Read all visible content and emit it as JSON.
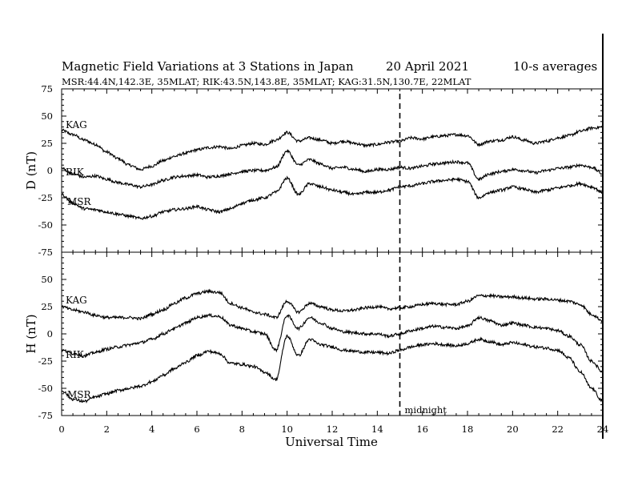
{
  "chart_data": {
    "type": "line",
    "title": {
      "main": "Magnetic Field Variations at 3 Stations in Japan",
      "date": "20  April     2021",
      "note": "10-s averages"
    },
    "subtitle": "MSR:44.4N,142.3E, 35MLAT;  RIK:43.5N,143.8E, 35MLAT;  KAG:31.5N,130.7E, 22MLAT",
    "xlabel": "Universal Time",
    "xlim": [
      0,
      24
    ],
    "xticks": [
      "0",
      "2",
      "4",
      "6",
      "8",
      "10",
      "12",
      "14",
      "16",
      "18",
      "20",
      "22",
      "24"
    ],
    "midnight": {
      "x": 15,
      "label": "midnight"
    },
    "grid": false,
    "panels": [
      {
        "ylabel": "D (nT)",
        "ylim": [
          -75,
          75
        ],
        "yticks": [
          "75",
          "50",
          "25",
          "0",
          "-25",
          "-50",
          "-75"
        ],
        "series": [
          {
            "name": "KAG",
            "x": [
              0,
              0.5,
              1,
              1.5,
              2,
              2.5,
              3,
              3.5,
              4,
              4.5,
              5,
              5.5,
              6,
              6.5,
              7,
              7.5,
              8,
              8.5,
              9,
              9.5,
              10,
              10.5,
              11,
              11.5,
              12,
              12.5,
              13,
              13.5,
              14,
              14.5,
              15,
              15.5,
              16,
              16.5,
              17,
              17.5,
              18,
              18.5,
              19,
              19.5,
              20,
              20.5,
              21,
              21.5,
              22,
              22.5,
              23,
              23.5,
              24
            ],
            "values": [
              37,
              33,
              28,
              24,
              17,
              11,
              5,
              1,
              4,
              9,
              13,
              16,
              19,
              21,
              22,
              20,
              23,
              25,
              24,
              28,
              35,
              27,
              30,
              28,
              25,
              27,
              25,
              23,
              24,
              26,
              27,
              30,
              29,
              31,
              32,
              33,
              32,
              24,
              27,
              28,
              31,
              28,
              25,
              27,
              30,
              32,
              36,
              39,
              40
            ]
          },
          {
            "name": "RIK",
            "x": [
              0,
              0.5,
              1,
              1.5,
              2,
              2.5,
              3,
              3.5,
              4,
              4.5,
              5,
              5.5,
              6,
              6.5,
              7,
              7.5,
              8,
              8.5,
              9,
              9.5,
              10,
              10.5,
              11,
              11.5,
              12,
              12.5,
              13,
              13.5,
              14,
              14.5,
              15,
              15.5,
              16,
              16.5,
              17,
              17.5,
              18,
              18.5,
              19,
              19.5,
              20,
              20.5,
              21,
              21.5,
              22,
              22.5,
              23,
              23.5,
              24
            ],
            "values": [
              2,
              -3,
              -6,
              -5,
              -8,
              -11,
              -13,
              -15,
              -13,
              -9,
              -6,
              -5,
              -4,
              -6,
              -5,
              -3,
              -1,
              0,
              0,
              3,
              18,
              5,
              10,
              6,
              2,
              3,
              1,
              -1,
              1,
              1,
              3,
              2,
              4,
              6,
              7,
              8,
              7,
              -8,
              -3,
              -1,
              1,
              0,
              -2,
              0,
              2,
              3,
              5,
              3,
              -3
            ]
          },
          {
            "name": "MSR",
            "x": [
              0,
              0.5,
              1,
              1.5,
              2,
              2.5,
              3,
              3.5,
              4,
              4.5,
              5,
              5.5,
              6,
              6.5,
              7,
              7.5,
              8,
              8.5,
              9,
              9.5,
              10,
              10.5,
              11,
              11.5,
              12,
              12.5,
              13,
              13.5,
              14,
              14.5,
              15,
              15.5,
              16,
              16.5,
              17,
              17.5,
              18,
              18.5,
              19,
              19.5,
              20,
              20.5,
              21,
              21.5,
              22,
              22.5,
              23,
              23.5,
              24
            ],
            "values": [
              -22,
              -30,
              -35,
              -36,
              -38,
              -40,
              -42,
              -44,
              -42,
              -38,
              -36,
              -35,
              -33,
              -36,
              -38,
              -35,
              -30,
              -27,
              -25,
              -20,
              -7,
              -22,
              -12,
              -15,
              -18,
              -20,
              -22,
              -20,
              -20,
              -18,
              -15,
              -14,
              -12,
              -10,
              -9,
              -8,
              -10,
              -25,
              -20,
              -18,
              -15,
              -17,
              -20,
              -18,
              -16,
              -14,
              -12,
              -15,
              -20
            ]
          }
        ]
      },
      {
        "ylabel": "H (nT)",
        "ylim": [
          -75,
          75
        ],
        "yticks": [
          "75",
          "50",
          "25",
          "0",
          "-25",
          "-50",
          "-75"
        ],
        "series": [
          {
            "name": "KAG",
            "x": [
              0,
              0.5,
              1,
              1.5,
              2,
              2.5,
              3,
              3.5,
              4,
              4.5,
              5,
              5.5,
              6,
              6.5,
              7,
              7.5,
              8,
              8.5,
              9,
              9.5,
              10,
              10.5,
              11,
              11.5,
              12,
              12.5,
              13,
              13.5,
              14,
              14.5,
              15,
              15.5,
              16,
              16.5,
              17,
              17.5,
              18,
              18.5,
              19,
              19.5,
              20,
              20.5,
              21,
              21.5,
              22,
              22.5,
              23,
              23.5,
              24
            ],
            "values": [
              25,
              22,
              20,
              17,
              15,
              15,
              15,
              14,
              18,
              22,
              28,
              33,
              37,
              39,
              38,
              28,
              24,
              20,
              18,
              15,
              30,
              20,
              28,
              25,
              22,
              21,
              22,
              24,
              25,
              23,
              24,
              25,
              27,
              28,
              27,
              27,
              30,
              35,
              35,
              34,
              34,
              33,
              32,
              32,
              31,
              30,
              27,
              18,
              12
            ]
          },
          {
            "name": "RIK",
            "x": [
              0,
              0.5,
              1,
              1.5,
              2,
              2.5,
              3,
              3.5,
              4,
              4.5,
              5,
              5.5,
              6,
              6.5,
              7,
              7.5,
              8,
              8.5,
              9,
              9.5,
              10,
              10.5,
              11,
              11.5,
              12,
              12.5,
              13,
              13.5,
              14,
              14.5,
              15,
              15.5,
              16,
              16.5,
              17,
              17.5,
              18,
              18.5,
              19,
              19.5,
              20,
              20.5,
              21,
              21.5,
              22,
              22.5,
              23,
              23.5,
              24
            ],
            "values": [
              -15,
              -18,
              -20,
              -17,
              -14,
              -12,
              -10,
              -8,
              -5,
              0,
              5,
              10,
              15,
              17,
              16,
              8,
              5,
              2,
              0,
              -15,
              17,
              5,
              15,
              10,
              5,
              2,
              1,
              0,
              0,
              -2,
              0,
              3,
              5,
              7,
              6,
              5,
              7,
              15,
              12,
              8,
              10,
              8,
              6,
              5,
              3,
              -2,
              -10,
              -25,
              -35
            ]
          },
          {
            "name": "MSR",
            "x": [
              0,
              0.5,
              1,
              1.5,
              2,
              2.5,
              3,
              3.5,
              4,
              4.5,
              5,
              5.5,
              6,
              6.5,
              7,
              7.5,
              8,
              8.5,
              9,
              9.5,
              10,
              10.5,
              11,
              11.5,
              12,
              12.5,
              13,
              13.5,
              14,
              14.5,
              15,
              15.5,
              16,
              16.5,
              17,
              17.5,
              18,
              18.5,
              19,
              19.5,
              20,
              20.5,
              21,
              21.5,
              22,
              22.5,
              23,
              23.5,
              24
            ],
            "values": [
              -52,
              -60,
              -62,
              -58,
              -55,
              -52,
              -50,
              -48,
              -44,
              -38,
              -32,
              -26,
              -20,
              -16,
              -18,
              -27,
              -28,
              -30,
              -35,
              -42,
              -2,
              -20,
              -5,
              -10,
              -12,
              -15,
              -16,
              -17,
              -17,
              -18,
              -15,
              -12,
              -10,
              -9,
              -10,
              -11,
              -9,
              -5,
              -7,
              -10,
              -8,
              -10,
              -12,
              -13,
              -15,
              -22,
              -35,
              -50,
              -62
            ]
          }
        ]
      }
    ]
  }
}
